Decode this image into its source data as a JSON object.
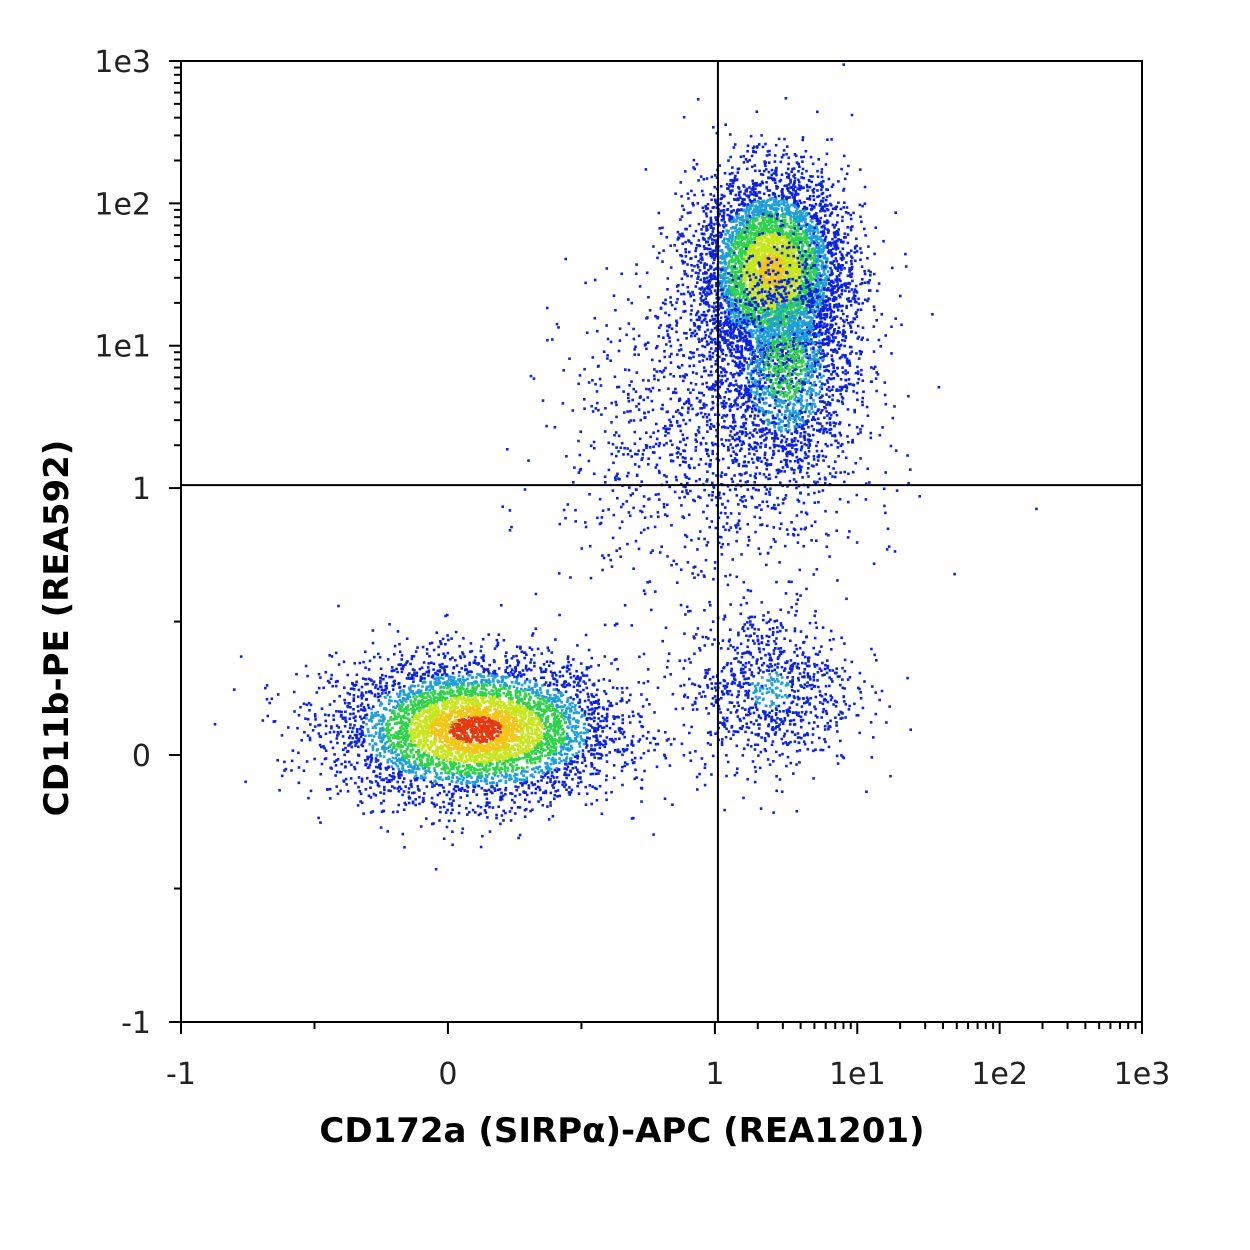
{
  "chart_data": {
    "type": "scatter",
    "subtype": "flow-cytometry density dot plot",
    "xlabel": "CD172a (SIRPα)-APC (REA1201)",
    "ylabel": "CD11b-PE (REA592)",
    "scale": "biexponential (linear -1 to 1, log 1 to 1e3)",
    "xlim": [
      -1,
      1000
    ],
    "ylim": [
      -1,
      1000
    ],
    "x_ticks": [
      "-1",
      "0",
      "1",
      "1e1",
      "1e2",
      "1e3"
    ],
    "y_ticks": [
      "-1",
      "0",
      "1",
      "1e1",
      "1e2",
      "1e3"
    ],
    "quadrant_gate": {
      "x": 1.05,
      "y": 1.05
    },
    "grid": false,
    "legend": "none",
    "density_colors": [
      "#0b22e0",
      "#1f9fd8",
      "#2fd24a",
      "#c8e61e",
      "#f2c616",
      "#e43a10"
    ],
    "populations": [
      {
        "center": [
          0.1,
          0.1
        ],
        "spread": [
          0.45,
          0.25
        ],
        "density": "very high",
        "quadrant": "lower-left"
      },
      {
        "center": [
          2.5,
          35
        ],
        "spread": [
          1.6,
          0.35
        ],
        "density": "high",
        "quadrant": "upper-right"
      },
      {
        "center": [
          2.5,
          0.25
        ],
        "spread": [
          1.2,
          0.25
        ],
        "density": "low",
        "quadrant": "lower-right"
      },
      {
        "center": [
          1.5,
          3
        ],
        "spread": [
          1.0,
          0.4
        ],
        "density": "low",
        "quadrant": "bridge"
      }
    ]
  }
}
